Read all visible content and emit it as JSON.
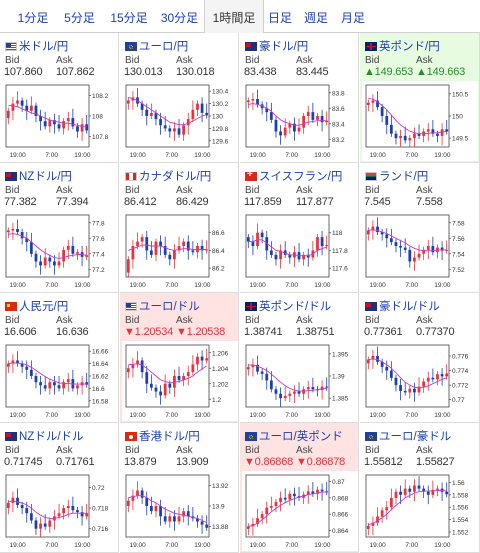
{
  "tabs": [
    "1分足",
    "5分足",
    "15分足",
    "30分足",
    "1時間足",
    "日足",
    "週足",
    "月足"
  ],
  "active_tab": 4,
  "colors": {
    "link": "#1a3fb5",
    "up_candle": "#e8323c",
    "down_candle": "#1a3fb5",
    "ma_line": "#c838c8",
    "down_cell_bg": "#ffe2e2",
    "up_cell_bg": "#e6fbe0"
  },
  "labels": {
    "bid": "Bid",
    "ask": "Ask"
  },
  "pairs": [
    {
      "name": "米ドル/円",
      "flag": "us-flag-icon",
      "bid": "107.860",
      "ask": "107.862",
      "state": "normal",
      "chart_data": {
        "type": "candlestick",
        "x_ticks": [
          "19:00",
          "7:00",
          "19:00"
        ],
        "y_ticks": [
          108.2,
          108,
          107.8
        ],
        "ylim": [
          107.7,
          108.3
        ],
        "closes": [
          108.05,
          108.12,
          108.15,
          108.1,
          108.05,
          108.1,
          108.0,
          107.95,
          107.9,
          107.96,
          107.92,
          107.88,
          107.95,
          107.98,
          107.9,
          107.85,
          107.92,
          107.86
        ],
        "ma": [
          108.1,
          108.1,
          108.09,
          108.07,
          108.05,
          108.03,
          108.02,
          108.0,
          107.98,
          107.96,
          107.95,
          107.94,
          107.93,
          107.93,
          107.92,
          107.91,
          107.9,
          107.9
        ]
      }
    },
    {
      "name": "ユーロ/円",
      "flag": "eu-flag-icon",
      "bid": "130.013",
      "ask": "130.018",
      "state": "normal",
      "chart_data": {
        "type": "candlestick",
        "x_ticks": [
          "19:00",
          "7:00",
          "19:00"
        ],
        "y_ticks": [
          130.4,
          130.2,
          130,
          129.8,
          129.6
        ],
        "ylim": [
          129.5,
          130.5
        ],
        "closes": [
          130.25,
          130.3,
          130.2,
          130.1,
          130.0,
          130.05,
          129.95,
          129.85,
          129.8,
          129.75,
          129.8,
          129.7,
          129.85,
          129.95,
          130.1,
          130.2,
          130.05,
          130.01
        ],
        "ma": [
          130.3,
          130.28,
          130.25,
          130.2,
          130.15,
          130.1,
          130.05,
          130.0,
          129.95,
          129.9,
          129.88,
          129.86,
          129.86,
          129.88,
          129.92,
          129.96,
          130.0,
          130.02
        ]
      }
    },
    {
      "name": "豪ドル/円",
      "flag": "au-flag-icon",
      "bid": "83.438",
      "ask": "83.445",
      "state": "normal",
      "chart_data": {
        "type": "candlestick",
        "x_ticks": [
          "19:00",
          "7:00",
          "19:00"
        ],
        "y_ticks": [
          83.8,
          83.6,
          83.4,
          83.2
        ],
        "ylim": [
          83.1,
          83.9
        ],
        "closes": [
          83.7,
          83.72,
          83.65,
          83.6,
          83.55,
          83.45,
          83.3,
          83.25,
          83.35,
          83.4,
          83.3,
          83.35,
          83.5,
          83.55,
          83.45,
          83.5,
          83.42,
          83.44
        ],
        "ma": [
          83.65,
          83.66,
          83.65,
          83.63,
          83.6,
          83.56,
          83.5,
          83.45,
          83.42,
          83.4,
          83.38,
          83.38,
          83.4,
          83.42,
          83.43,
          83.44,
          83.44,
          83.44
        ]
      }
    },
    {
      "name": "英ポンド/円",
      "flag": "gb-flag-icon",
      "bid": "▲149.653",
      "ask": "▲149.663",
      "state": "up",
      "chart_data": {
        "type": "candlestick",
        "x_ticks": [
          "19:00",
          "7:00",
          "19:00"
        ],
        "y_ticks": [
          150.5,
          150,
          149.5
        ],
        "ylim": [
          149.3,
          150.7
        ],
        "closes": [
          150.3,
          150.35,
          150.2,
          150.0,
          149.8,
          149.6,
          149.5,
          149.55,
          149.45,
          149.5,
          149.6,
          149.55,
          149.65,
          149.7,
          149.6,
          149.55,
          149.7,
          149.65
        ],
        "ma": [
          150.4,
          150.38,
          150.32,
          150.24,
          150.14,
          150.02,
          149.9,
          149.8,
          149.72,
          149.66,
          149.62,
          149.6,
          149.6,
          149.61,
          149.62,
          149.62,
          149.64,
          149.65
        ]
      }
    },
    {
      "name": "NZドル/円",
      "flag": "nz-flag-icon",
      "bid": "77.382",
      "ask": "77.394",
      "state": "normal",
      "chart_data": {
        "type": "candlestick",
        "x_ticks": [
          "19:00",
          "7:00",
          "19:00"
        ],
        "y_ticks": [
          77.8,
          77.6,
          77.4,
          77.2
        ],
        "ylim": [
          77.1,
          77.9
        ],
        "closes": [
          77.7,
          77.72,
          77.68,
          77.6,
          77.55,
          77.4,
          77.3,
          77.25,
          77.35,
          77.3,
          77.25,
          77.3,
          77.45,
          77.5,
          77.4,
          77.42,
          77.36,
          77.38
        ],
        "ma": [
          77.65,
          77.66,
          77.65,
          77.63,
          77.6,
          77.55,
          77.5,
          77.45,
          77.41,
          77.38,
          77.35,
          77.34,
          77.35,
          77.37,
          77.38,
          77.39,
          77.39,
          77.38
        ]
      }
    },
    {
      "name": "カナダドル/円",
      "flag": "ca-flag-icon",
      "bid": "86.412",
      "ask": "86.429",
      "state": "normal",
      "chart_data": {
        "type": "candlestick",
        "x_ticks": [
          "19:00",
          "7:00",
          "19:00"
        ],
        "y_ticks": [
          86.6,
          86.4,
          86.2
        ],
        "ylim": [
          86.1,
          86.8
        ],
        "closes": [
          86.3,
          86.45,
          86.5,
          86.55,
          86.4,
          86.35,
          86.5,
          86.45,
          86.35,
          86.3,
          86.4,
          86.45,
          86.5,
          86.4,
          86.38,
          86.45,
          86.4,
          86.41
        ],
        "ma": [
          86.4,
          86.42,
          86.44,
          86.46,
          86.46,
          86.45,
          86.45,
          86.45,
          86.43,
          86.41,
          86.4,
          86.41,
          86.42,
          86.42,
          86.41,
          86.41,
          86.41,
          86.41
        ]
      }
    },
    {
      "name": "スイスフラン/円",
      "flag": "ch-flag-icon",
      "bid": "117.859",
      "ask": "117.877",
      "state": "normal",
      "chart_data": {
        "type": "candlestick",
        "x_ticks": [
          "19:00",
          "7:00",
          "19:00"
        ],
        "y_ticks": [
          118,
          117.8,
          117.6
        ],
        "ylim": [
          117.5,
          118.2
        ],
        "closes": [
          117.9,
          117.85,
          118.0,
          117.95,
          117.8,
          117.75,
          117.7,
          117.8,
          117.75,
          117.72,
          117.78,
          117.7,
          117.75,
          117.72,
          117.8,
          117.95,
          117.85,
          117.86
        ],
        "ma": [
          117.9,
          117.9,
          117.92,
          117.92,
          117.88,
          117.84,
          117.8,
          117.79,
          117.77,
          117.75,
          117.75,
          117.74,
          117.74,
          117.74,
          117.76,
          117.8,
          117.82,
          117.84
        ]
      }
    },
    {
      "name": "ランド/円",
      "flag": "za-flag-icon",
      "bid": "7.545",
      "ask": "7.558",
      "state": "normal",
      "chart_data": {
        "type": "candlestick",
        "x_ticks": [
          "19:00",
          "7:00",
          "19:00"
        ],
        "y_ticks": [
          7.58,
          7.56,
          7.54,
          7.52
        ],
        "ylim": [
          7.51,
          7.59
        ],
        "closes": [
          7.57,
          7.575,
          7.568,
          7.565,
          7.56,
          7.555,
          7.55,
          7.548,
          7.545,
          7.53,
          7.535,
          7.54,
          7.545,
          7.55,
          7.542,
          7.548,
          7.544,
          7.545
        ],
        "ma": [
          7.57,
          7.571,
          7.57,
          7.568,
          7.566,
          7.563,
          7.56,
          7.557,
          7.554,
          7.55,
          7.547,
          7.545,
          7.544,
          7.544,
          7.544,
          7.545,
          7.545,
          7.545
        ]
      }
    },
    {
      "name": "人民元/円",
      "flag": "cn-flag-icon",
      "bid": "16.606",
      "ask": "16.636",
      "state": "normal",
      "chart_data": {
        "type": "candlestick",
        "x_ticks": [
          "19:00",
          "7:00",
          "19:00"
        ],
        "y_ticks": [
          16.66,
          16.64,
          16.62,
          16.6,
          16.58
        ],
        "ylim": [
          16.57,
          16.67
        ],
        "closes": [
          16.64,
          16.645,
          16.64,
          16.635,
          16.63,
          16.62,
          16.61,
          16.605,
          16.6,
          16.61,
          16.605,
          16.6,
          16.61,
          16.615,
          16.6,
          16.605,
          16.61,
          16.606
        ],
        "ma": [
          16.64,
          16.641,
          16.641,
          16.64,
          16.638,
          16.634,
          16.629,
          16.624,
          16.619,
          16.615,
          16.612,
          16.609,
          16.608,
          16.608,
          16.607,
          16.607,
          16.607,
          16.607
        ]
      }
    },
    {
      "name": "ユーロ/ドル",
      "flag": "us-flag-icon",
      "bid": "▼1.20534",
      "ask": "▼1.20538",
      "state": "down",
      "chart_data": {
        "type": "candlestick",
        "x_ticks": [
          "19:00",
          "7:00",
          "19:00"
        ],
        "y_ticks": [
          1.206,
          1.204,
          1.202,
          1.2
        ],
        "ylim": [
          1.199,
          1.207
        ],
        "closes": [
          1.204,
          1.2045,
          1.205,
          1.2035,
          1.202,
          1.2015,
          1.201,
          1.2005,
          1.202,
          1.2015,
          1.203,
          1.2025,
          1.203,
          1.2035,
          1.2045,
          1.2055,
          1.205,
          1.2053
        ],
        "ma": [
          1.2045,
          1.2045,
          1.2046,
          1.2044,
          1.204,
          1.2035,
          1.203,
          1.2025,
          1.2023,
          1.2021,
          1.2022,
          1.2023,
          1.2025,
          1.2027,
          1.203,
          1.2035,
          1.2039,
          1.2043
        ]
      }
    },
    {
      "name": "英ポンド/ドル",
      "flag": "gb-flag-icon",
      "bid": "1.38741",
      "ask": "1.38751",
      "state": "normal",
      "chart_data": {
        "type": "candlestick",
        "x_ticks": [
          "19:00",
          "7:00",
          "19:00"
        ],
        "y_ticks": [
          1.395,
          1.39,
          1.385
        ],
        "ylim": [
          1.383,
          1.397
        ],
        "closes": [
          1.392,
          1.3925,
          1.391,
          1.3905,
          1.389,
          1.387,
          1.386,
          1.385,
          1.3855,
          1.386,
          1.3865,
          1.386,
          1.387,
          1.3875,
          1.387,
          1.3868,
          1.3876,
          1.3874
        ],
        "ma": [
          1.3925,
          1.3925,
          1.3922,
          1.3918,
          1.3912,
          1.3904,
          1.3895,
          1.3886,
          1.3878,
          1.3872,
          1.3868,
          1.3866,
          1.3866,
          1.3867,
          1.3868,
          1.3869,
          1.3871,
          1.3872
        ]
      }
    },
    {
      "name": "豪ドル/ドル",
      "flag": "au-flag-icon",
      "bid": "0.77361",
      "ask": "0.77370",
      "state": "normal",
      "chart_data": {
        "type": "candlestick",
        "x_ticks": [
          "19:00",
          "7:00",
          "19:00"
        ],
        "y_ticks": [
          0.776,
          0.774,
          0.772,
          0.77
        ],
        "ylim": [
          0.769,
          0.7775
        ],
        "closes": [
          0.7755,
          0.776,
          0.7752,
          0.7745,
          0.774,
          0.773,
          0.772,
          0.7712,
          0.771,
          0.7715,
          0.771,
          0.7718,
          0.7725,
          0.773,
          0.7728,
          0.7735,
          0.7732,
          0.7736
        ],
        "ma": [
          0.7755,
          0.7756,
          0.7755,
          0.7752,
          0.7748,
          0.7743,
          0.7737,
          0.773,
          0.7724,
          0.772,
          0.7717,
          0.7716,
          0.7717,
          0.7719,
          0.7722,
          0.7725,
          0.7728,
          0.773
        ]
      }
    },
    {
      "name": "NZドル/ドル",
      "flag": "nz-flag-icon",
      "bid": "0.71745",
      "ask": "0.71761",
      "state": "normal",
      "chart_data": {
        "type": "candlestick",
        "x_ticks": [
          "19:00",
          "7:00",
          "19:00"
        ],
        "y_ticks": [
          0.72,
          0.718,
          0.716
        ],
        "ylim": [
          0.7152,
          0.7212
        ],
        "closes": [
          0.7185,
          0.719,
          0.7183,
          0.718,
          0.7175,
          0.7168,
          0.716,
          0.7165,
          0.7162,
          0.7168,
          0.7172,
          0.7175,
          0.718,
          0.7182,
          0.7178,
          0.7176,
          0.7172,
          0.7175
        ],
        "ma": [
          0.7186,
          0.7187,
          0.7186,
          0.7185,
          0.7183,
          0.718,
          0.7176,
          0.7173,
          0.7171,
          0.717,
          0.717,
          0.7171,
          0.7172,
          0.7174,
          0.7175,
          0.7175,
          0.7175,
          0.7175
        ]
      }
    },
    {
      "name": "香港ドル/円",
      "flag": "hk-flag-icon",
      "bid": "13.879",
      "ask": "13.909",
      "state": "normal",
      "chart_data": {
        "type": "candlestick",
        "x_ticks": [
          "19:00",
          "7:00",
          "19:00"
        ],
        "y_ticks": [
          13.92,
          13.9,
          13.88
        ],
        "ylim": [
          13.87,
          13.93
        ],
        "closes": [
          13.905,
          13.91,
          13.915,
          13.908,
          13.9,
          13.895,
          13.9,
          13.89,
          13.885,
          13.89,
          13.885,
          13.89,
          13.895,
          13.89,
          13.888,
          13.885,
          13.882,
          13.879
        ],
        "ma": [
          13.908,
          13.909,
          13.91,
          13.91,
          13.908,
          13.905,
          13.903,
          13.9,
          13.897,
          13.895,
          13.893,
          13.892,
          13.891,
          13.89,
          13.889,
          13.888,
          13.886,
          13.884
        ]
      }
    },
    {
      "name": "ユーロ/英ポンド",
      "flag": "eu-flag-icon",
      "bid": "▼0.86868",
      "ask": "▼0.86878",
      "state": "down",
      "chart_data": {
        "type": "candlestick",
        "x_ticks": [
          "19:00",
          "7:00",
          "19:00"
        ],
        "y_ticks": [
          0.87,
          0.868,
          0.866,
          0.864
        ],
        "ylim": [
          0.8632,
          0.8708
        ],
        "closes": [
          0.8645,
          0.8648,
          0.8655,
          0.866,
          0.8668,
          0.867,
          0.8675,
          0.868,
          0.8678,
          0.8685,
          0.8682,
          0.868,
          0.8684,
          0.8688,
          0.8685,
          0.869,
          0.8688,
          0.8687
        ],
        "ma": [
          0.8645,
          0.8646,
          0.8649,
          0.8653,
          0.8658,
          0.8663,
          0.8667,
          0.8671,
          0.8674,
          0.8677,
          0.8679,
          0.8681,
          0.8682,
          0.8684,
          0.8685,
          0.8686,
          0.8687,
          0.8687
        ]
      }
    },
    {
      "name": "ユーロ/豪ドル",
      "flag": "eu-flag-icon",
      "bid": "1.55812",
      "ask": "1.55827",
      "state": "normal",
      "chart_data": {
        "type": "candlestick",
        "x_ticks": [
          "19:00",
          "7:00",
          "19:00"
        ],
        "y_ticks": [
          1.56,
          1.558,
          1.556,
          1.554,
          1.552
        ],
        "ylim": [
          1.5512,
          1.5612
        ],
        "closes": [
          1.553,
          1.5535,
          1.5545,
          1.5555,
          1.556,
          1.5575,
          1.5585,
          1.558,
          1.559,
          1.5585,
          1.5595,
          1.559,
          1.5585,
          1.558,
          1.5588,
          1.559,
          1.5585,
          1.5581
        ],
        "ma": [
          1.5532,
          1.5534,
          1.5538,
          1.5543,
          1.5549,
          1.5556,
          1.5563,
          1.5569,
          1.5575,
          1.5579,
          1.5583,
          1.5585,
          1.5586,
          1.5586,
          1.5586,
          1.5587,
          1.5587,
          1.5586
        ]
      }
    }
  ]
}
